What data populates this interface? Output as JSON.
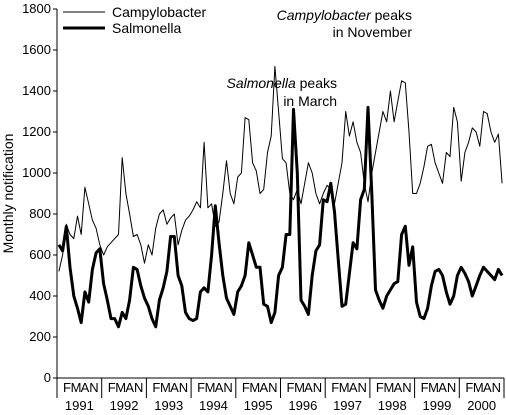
{
  "chart_data": {
    "type": "line",
    "ylabel": "Monthly notification",
    "ylim": [
      0,
      1800
    ],
    "yticks": [
      0,
      200,
      400,
      600,
      800,
      1000,
      1200,
      1400,
      1600,
      1800
    ],
    "month_labels": [
      "F",
      "M",
      "A",
      "N"
    ],
    "years": [
      "1991",
      "1992",
      "1993",
      "1994",
      "1995",
      "1996",
      "1997",
      "1998",
      "1999",
      "2000"
    ],
    "grid": false,
    "legend_position": "top-left",
    "series": [
      {
        "name": "Campylobacter",
        "style": "thin",
        "values": [
          520,
          600,
          750,
          700,
          680,
          790,
          700,
          930,
          850,
          770,
          730,
          650,
          600,
          640,
          660,
          680,
          700,
          1075,
          900,
          800,
          690,
          700,
          650,
          560,
          650,
          600,
          730,
          800,
          820,
          750,
          780,
          800,
          650,
          720,
          770,
          790,
          820,
          860,
          830,
          1150,
          830,
          850,
          740,
          760,
          900,
          1060,
          900,
          850,
          980,
          1000,
          1270,
          1260,
          1050,
          1010,
          900,
          920,
          1100,
          1180,
          1520,
          1300,
          1070,
          1050,
          900,
          870,
          920,
          850,
          950,
          1050,
          1000,
          900,
          850,
          900,
          940,
          920,
          850,
          950,
          1050,
          1300,
          1180,
          1250,
          1150,
          1100,
          950,
          860,
          1000,
          1100,
          1200,
          1300,
          1250,
          1400,
          1250,
          1350,
          1450,
          1440,
          1200,
          900,
          900,
          950,
          1030,
          1130,
          1140,
          1050,
          1000,
          950,
          1100,
          1080,
          1320,
          1250,
          960,
          1100,
          1150,
          1220,
          1200,
          1130,
          1300,
          1290,
          1200,
          1150,
          1190,
          950
        ],
        "annotation_line1": "Campylobacter",
        "annotation_line1_suffix": " peaks",
        "annotation_line2": "in November"
      },
      {
        "name": "Salmonella",
        "style": "bold",
        "values": [
          650,
          620,
          740,
          540,
          400,
          340,
          270,
          420,
          370,
          530,
          610,
          630,
          460,
          380,
          290,
          290,
          250,
          320,
          290,
          380,
          540,
          530,
          450,
          390,
          350,
          290,
          250,
          380,
          440,
          520,
          690,
          690,
          500,
          450,
          320,
          290,
          280,
          290,
          420,
          440,
          420,
          600,
          840,
          660,
          500,
          390,
          350,
          310,
          420,
          450,
          500,
          660,
          600,
          540,
          540,
          360,
          350,
          270,
          320,
          500,
          540,
          700,
          700,
          1310,
          1000,
          380,
          350,
          310,
          500,
          620,
          650,
          870,
          860,
          950,
          810,
          580,
          350,
          360,
          510,
          660,
          630,
          870,
          920,
          1320,
          900,
          430,
          380,
          340,
          400,
          430,
          460,
          470,
          700,
          740,
          550,
          640,
          370,
          300,
          290,
          340,
          450,
          520,
          530,
          500,
          420,
          360,
          400,
          500,
          540,
          510,
          470,
          400,
          450,
          500,
          540,
          520,
          500,
          480,
          530,
          500
        ],
        "annotation_line1": "Salmonella",
        "annotation_line1_suffix": " peaks",
        "annotation_line2": "in March"
      }
    ]
  }
}
